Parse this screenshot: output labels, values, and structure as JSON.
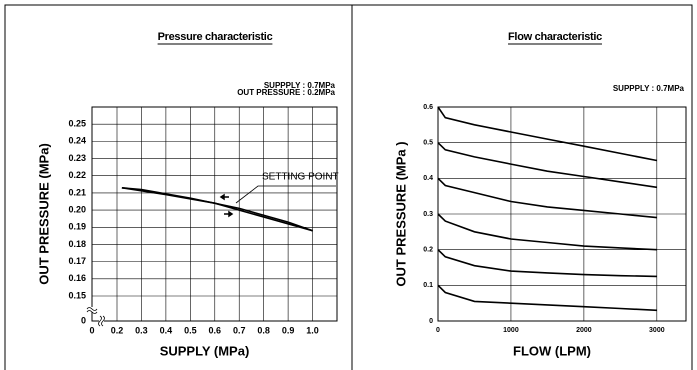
{
  "chart_data": [
    {
      "type": "line",
      "title": "Pressure characteristic",
      "annotations": [
        "SUPPPLY : 0.7MPa",
        "OUT PRESSURE : 0.2MPa"
      ],
      "setting_point": "SETTING POINT",
      "xlabel": "SUPPLY (MPa)",
      "ylabel": "OUT PRESSURE (MPa)",
      "xlim": [
        0,
        1.1
      ],
      "ylim": [
        0,
        0.26
      ],
      "x_break": true,
      "y_break": true,
      "grid": true,
      "xticks": [
        0,
        0.2,
        0.3,
        0.4,
        0.5,
        0.6,
        0.7,
        0.8,
        0.9,
        {
          "value": 1,
          "label": "1.0"
        }
      ],
      "yticks": [
        0,
        0.15,
        0.16,
        0.17,
        0.18,
        0.19,
        {
          "value": 0.2,
          "label": "0.20"
        },
        0.21,
        0.22,
        0.23,
        0.24,
        0.25
      ],
      "series": [
        {
          "color": "#000000",
          "x": [
            0.22,
            0.3,
            0.5,
            0.7,
            0.9,
            1.0
          ],
          "values": [
            0.213,
            0.212,
            0.207,
            0.201,
            0.193,
            0.188
          ]
        },
        {
          "color": "#000000",
          "x": [
            0.22,
            0.4,
            0.6,
            0.7,
            0.9,
            1.0
          ],
          "values": [
            0.213,
            0.209,
            0.204,
            0.2,
            0.192,
            0.188
          ]
        }
      ]
    },
    {
      "type": "line",
      "title": "Flow characteristic",
      "annotations": [
        "SUPPPLY : 0.7MPa"
      ],
      "xlabel": "FLOW (LPM)",
      "ylabel": "OUT PRESSURE (MPa )",
      "xlim": [
        0,
        3400
      ],
      "ylim": [
        0,
        0.6
      ],
      "grid": true,
      "xticks": [
        0,
        1000,
        2000,
        3000
      ],
      "yticks": [
        0,
        0.1,
        0.2,
        0.3,
        0.4,
        0.5,
        0.6
      ],
      "series": [
        {
          "color": "#000000",
          "x": [
            0,
            100,
            500,
            1000,
            1500,
            2000,
            2500,
            3000
          ],
          "values": [
            0.6,
            0.57,
            0.55,
            0.53,
            0.51,
            0.49,
            0.47,
            0.45
          ]
        },
        {
          "color": "#000000",
          "x": [
            0,
            100,
            500,
            1000,
            1500,
            2000,
            2500,
            3000
          ],
          "values": [
            0.5,
            0.48,
            0.46,
            0.44,
            0.42,
            0.405,
            0.39,
            0.375
          ]
        },
        {
          "color": "#000000",
          "x": [
            0,
            100,
            500,
            1000,
            1500,
            2000,
            2500,
            3000
          ],
          "values": [
            0.4,
            0.38,
            0.36,
            0.335,
            0.32,
            0.31,
            0.3,
            0.29
          ]
        },
        {
          "color": "#000000",
          "x": [
            0,
            100,
            500,
            1000,
            1500,
            2000,
            2500,
            3000
          ],
          "values": [
            0.3,
            0.28,
            0.25,
            0.23,
            0.22,
            0.21,
            0.205,
            0.2
          ]
        },
        {
          "color": "#000000",
          "x": [
            0,
            100,
            500,
            1000,
            1500,
            2000,
            2500,
            3000
          ],
          "values": [
            0.2,
            0.18,
            0.155,
            0.14,
            0.135,
            0.13,
            0.127,
            0.125
          ]
        },
        {
          "color": "#000000",
          "x": [
            0,
            100,
            500,
            1000,
            1500,
            2000,
            2500,
            3000
          ],
          "values": [
            0.1,
            0.08,
            0.055,
            0.05,
            0.045,
            0.04,
            0.035,
            0.03
          ]
        }
      ]
    }
  ]
}
